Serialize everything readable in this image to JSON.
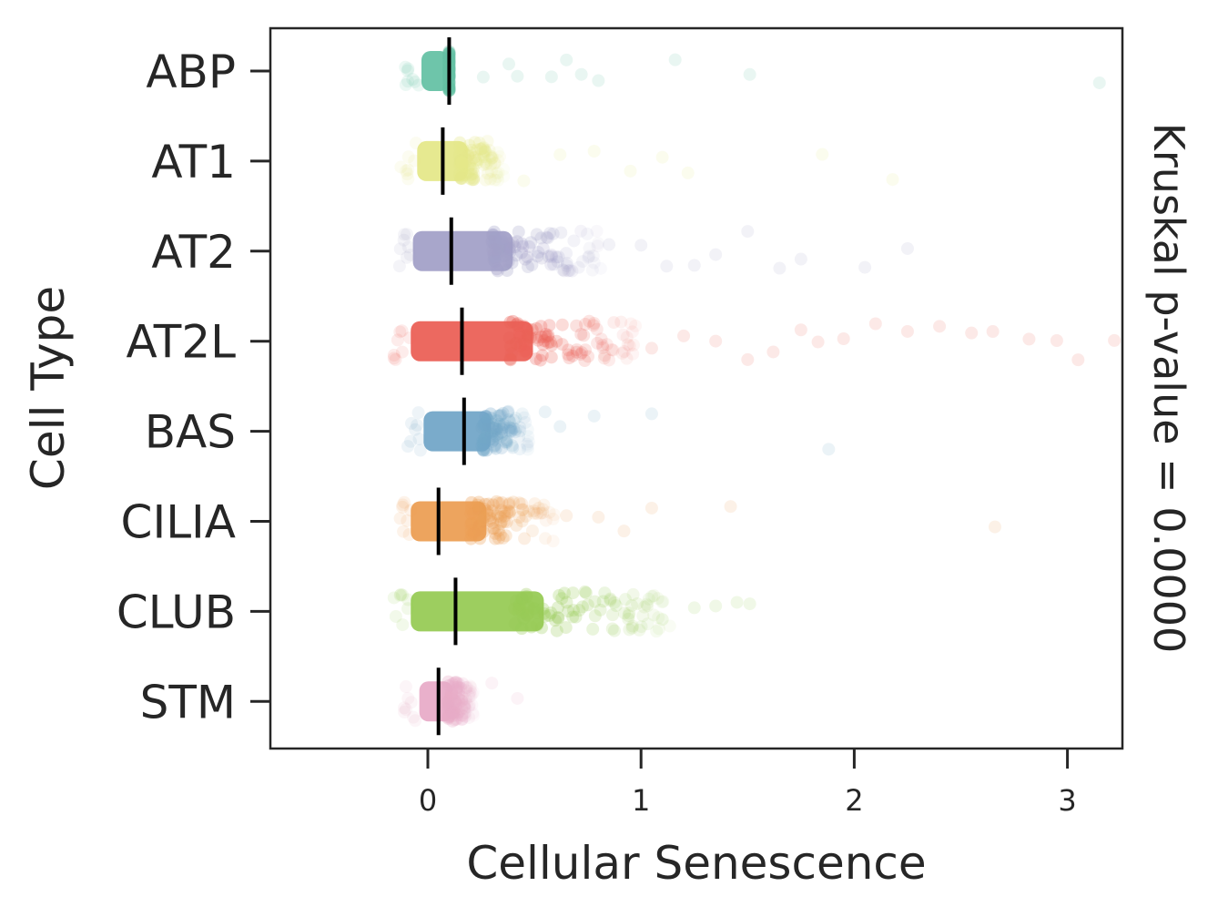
{
  "chart_data": {
    "type": "strip",
    "xlabel": "Cellular Senescence",
    "ylabel": "Cell Type",
    "annotation": "Kruskal p-value = 0.0000",
    "xlim": [
      -0.74,
      3.26
    ],
    "xticks": [
      0,
      1,
      2,
      3
    ],
    "xtick_labels": [
      "0",
      "1",
      "2",
      "3"
    ],
    "categories": [
      "ABP",
      "AT1",
      "AT2",
      "AT2L",
      "BAS",
      "CILIA",
      "CLUB",
      "STM"
    ],
    "colors": [
      "#66c2a5",
      "#e5e88a",
      "#a3a1c8",
      "#eb6157",
      "#73a7c8",
      "#ec9f55",
      "#98cb56",
      "#e8acc8"
    ],
    "medians": [
      0.1,
      0.07,
      0.11,
      0.16,
      0.17,
      0.05,
      0.13,
      0.05
    ],
    "dense_max": [
      0.1,
      0.33,
      0.75,
      0.9,
      0.45,
      0.55,
      1.05,
      0.2
    ],
    "dense_min": [
      -0.03,
      -0.05,
      -0.07,
      -0.08,
      -0.02,
      -0.08,
      -0.08,
      -0.04
    ],
    "outliers": [
      [
        0.26,
        0.38,
        0.42,
        0.58,
        0.65,
        0.72,
        0.8,
        1.16,
        1.51,
        3.15
      ],
      [
        0.45,
        0.62,
        0.78,
        0.95,
        1.1,
        1.22,
        1.85,
        2.18
      ],
      [
        0.85,
        1.0,
        1.12,
        1.25,
        1.35,
        1.5,
        1.65,
        1.75,
        2.05,
        2.25
      ],
      [
        1.05,
        1.2,
        1.35,
        1.5,
        1.62,
        1.75,
        1.83,
        1.95,
        2.1,
        2.25,
        2.4,
        2.55,
        2.65,
        2.82,
        2.95,
        3.05,
        3.22
      ],
      [
        0.55,
        0.62,
        0.78,
        1.05,
        1.88
      ],
      [
        0.65,
        0.8,
        0.92,
        1.05,
        1.42,
        2.66
      ],
      [
        1.1,
        1.25,
        1.35,
        1.45,
        1.51
      ],
      [
        0.3,
        0.42
      ]
    ]
  }
}
